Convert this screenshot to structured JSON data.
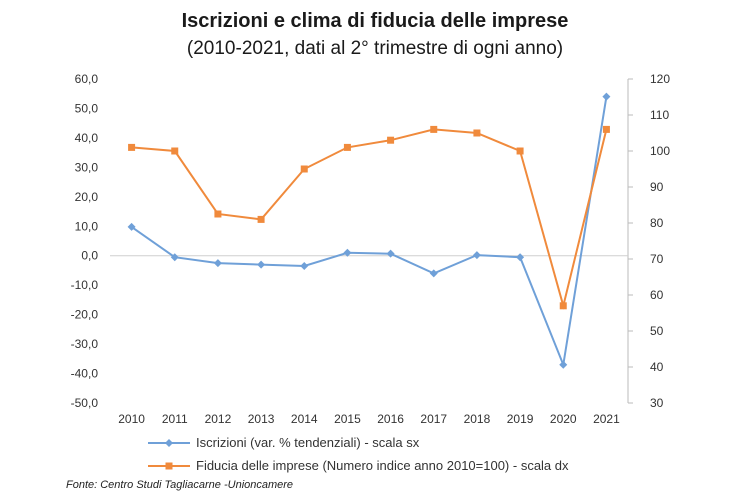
{
  "header": {
    "title": "Iscrizioni e clima di fiducia delle imprese",
    "subtitle": "(2010-2021, dati al 2° trimestre di ogni anno)"
  },
  "source": "Fonte: Centro Studi Tagliacarne -Unioncamere",
  "colors": {
    "iscrizioni": "#6fa0d8",
    "fiducia": "#f08a3c"
  },
  "chart_data": {
    "type": "line",
    "title": "Iscrizioni e clima di fiducia delle imprese",
    "subtitle": "(2010-2021, dati al 2° trimestre di ogni anno)",
    "categories": [
      "2010",
      "2011",
      "2012",
      "2013",
      "2014",
      "2015",
      "2016",
      "2017",
      "2018",
      "2019",
      "2020",
      "2021"
    ],
    "left_axis": {
      "ylim": [
        -50,
        60
      ],
      "ticks": [
        "60,0",
        "50,0",
        "40,0",
        "30,0",
        "20,0",
        "10,0",
        "0,0",
        "-10,0",
        "-20,0",
        "-30,0",
        "-40,0",
        "-50,0"
      ],
      "tick_values": [
        60,
        50,
        40,
        30,
        20,
        10,
        0,
        -10,
        -20,
        -30,
        -40,
        -50
      ]
    },
    "right_axis": {
      "ylim": [
        30,
        120
      ],
      "ticks": [
        "120",
        "110",
        "100",
        "90",
        "80",
        "70",
        "60",
        "50",
        "40",
        "30"
      ],
      "tick_values": [
        120,
        110,
        100,
        90,
        80,
        70,
        60,
        50,
        40,
        30
      ]
    },
    "series": [
      {
        "name": "Iscrizioni (var. % tendenziali) - scala sx",
        "axis": "left",
        "marker": "diamond",
        "values": [
          9.8,
          -0.5,
          -2.5,
          -3.0,
          -3.5,
          1.0,
          0.7,
          -6.0,
          0.2,
          -0.5,
          -37.0,
          54.0
        ]
      },
      {
        "name": "Fiducia delle imprese (Numero indice anno 2010=100) - scala dx",
        "axis": "right",
        "marker": "square",
        "values": [
          101,
          100,
          82.5,
          81,
          95,
          101,
          103,
          106,
          105,
          100,
          57,
          106
        ]
      }
    ],
    "grid": false,
    "legend_position": "bottom"
  }
}
